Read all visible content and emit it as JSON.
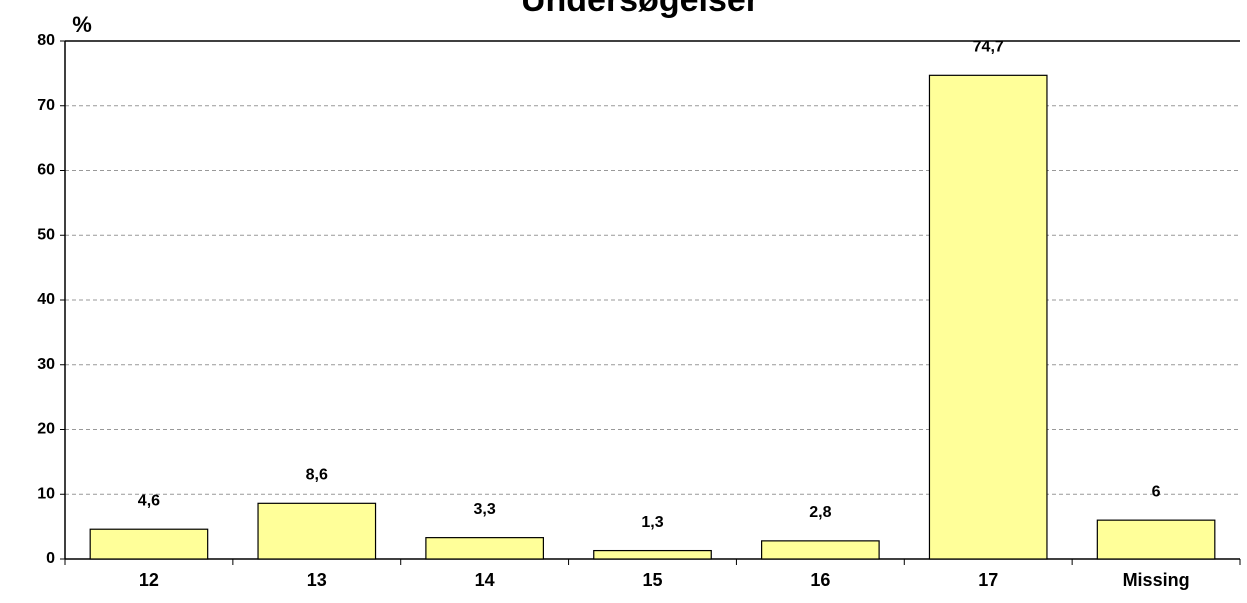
{
  "chart_data": {
    "type": "bar",
    "title": "Undersøgelser",
    "y_label": "%",
    "categories": [
      "12",
      "13",
      "14",
      "15",
      "16",
      "17",
      "Missing"
    ],
    "values": [
      4.6,
      8.6,
      3.3,
      1.3,
      2.8,
      74.7,
      6
    ],
    "value_labels": [
      "4,6",
      "8,6",
      "3,3",
      "1,3",
      "2,8",
      "74,7",
      "6"
    ],
    "color": "#ffff99",
    "ylim": [
      0,
      80
    ],
    "yticks": [
      0,
      10,
      20,
      30,
      40,
      50,
      60,
      70,
      80
    ],
    "grid": true
  }
}
